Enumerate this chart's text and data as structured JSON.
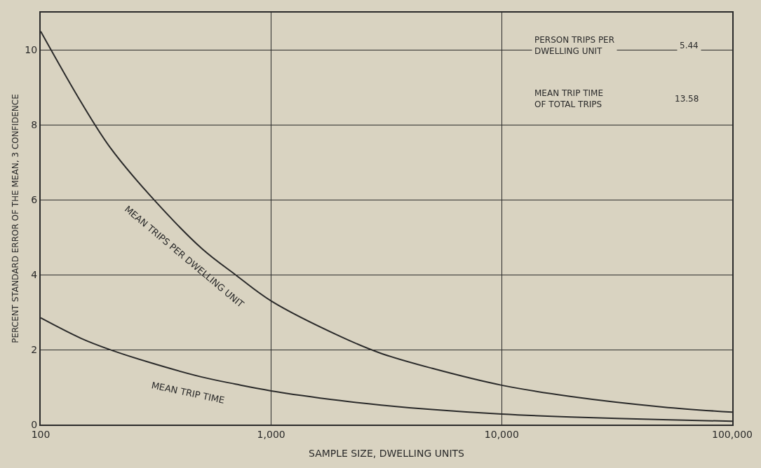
{
  "chart_data": {
    "type": "line",
    "xlabel": "SAMPLE SIZE, DWELLING UNITS",
    "ylabel": "PERCENT STANDARD ERROR OF THE MEAN, 3 CONFIDENCE",
    "log": "x",
    "x": [
      100,
      150,
      200,
      300,
      500,
      700,
      1000,
      2000,
      3000,
      5000,
      10000,
      20000,
      50000,
      100000
    ],
    "xlim": [
      100,
      100000
    ],
    "xticks": [
      {
        "value": 100,
        "label": "100"
      },
      {
        "value": 1000,
        "label": "1,000"
      },
      {
        "value": 10000,
        "label": "10,000"
      },
      {
        "value": 100000,
        "label": "100,000"
      }
    ],
    "ylim": [
      0,
      11
    ],
    "yticks": [
      0,
      2,
      4,
      6,
      8,
      10
    ],
    "grid": true,
    "legend": false,
    "marker": "none",
    "line_style": "solid",
    "series": [
      {
        "name": "MEAN TRIPS PER DWELLING UNIT",
        "color": "#2a2a2a",
        "values": [
          10.5,
          8.6,
          7.4,
          6.1,
          4.7,
          4.0,
          3.3,
          2.35,
          1.9,
          1.5,
          1.05,
          0.75,
          0.47,
          0.33
        ]
      },
      {
        "name": "MEAN TRIP TIME",
        "color": "#2a2a2a",
        "values": [
          2.85,
          2.3,
          2.0,
          1.65,
          1.27,
          1.08,
          0.9,
          0.64,
          0.52,
          0.4,
          0.28,
          0.2,
          0.13,
          0.09
        ]
      }
    ],
    "annotations": [
      "PERSON TRIPS PER\nDWELLING UNIT",
      "5.44",
      "MEAN TRIP TIME\nOF TOTAL TRIPS",
      "13.58"
    ]
  }
}
